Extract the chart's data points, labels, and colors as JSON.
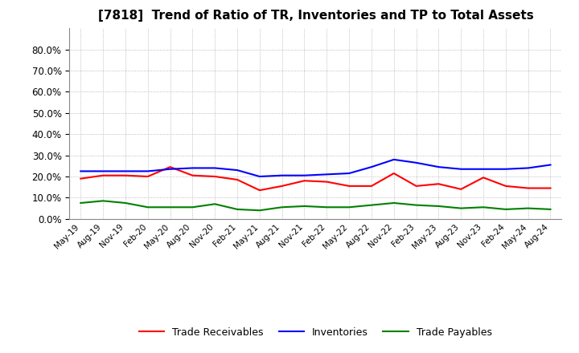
{
  "title": "[7818]  Trend of Ratio of TR, Inventories and TP to Total Assets",
  "x_labels": [
    "May-19",
    "Aug-19",
    "Nov-19",
    "Feb-20",
    "May-20",
    "Aug-20",
    "Nov-20",
    "Feb-21",
    "May-21",
    "Aug-21",
    "Nov-21",
    "Feb-22",
    "May-22",
    "Aug-22",
    "Nov-22",
    "Feb-23",
    "May-23",
    "Aug-23",
    "Nov-23",
    "Feb-24",
    "May-24",
    "Aug-24"
  ],
  "trade_receivables": [
    0.19,
    0.205,
    0.205,
    0.2,
    0.245,
    0.205,
    0.2,
    0.185,
    0.135,
    0.155,
    0.18,
    0.175,
    0.155,
    0.155,
    0.215,
    0.155,
    0.165,
    0.14,
    0.195,
    0.155,
    0.145,
    0.145
  ],
  "inventories": [
    0.225,
    0.225,
    0.225,
    0.225,
    0.235,
    0.24,
    0.24,
    0.23,
    0.2,
    0.205,
    0.205,
    0.21,
    0.215,
    0.245,
    0.28,
    0.265,
    0.245,
    0.235,
    0.235,
    0.235,
    0.24,
    0.255
  ],
  "trade_payables": [
    0.075,
    0.085,
    0.075,
    0.055,
    0.055,
    0.055,
    0.07,
    0.045,
    0.04,
    0.055,
    0.06,
    0.055,
    0.055,
    0.065,
    0.075,
    0.065,
    0.06,
    0.05,
    0.055,
    0.045,
    0.05,
    0.045
  ],
  "ylim": [
    0.0,
    0.9
  ],
  "yticks": [
    0.0,
    0.1,
    0.2,
    0.3,
    0.4,
    0.5,
    0.6,
    0.7,
    0.8
  ],
  "tr_color": "#ff0000",
  "inv_color": "#0000ff",
  "tp_color": "#008000",
  "background_color": "#ffffff",
  "grid_color": "#aaaaaa",
  "title_fontsize": 11,
  "legend_labels": [
    "Trade Receivables",
    "Inventories",
    "Trade Payables"
  ]
}
